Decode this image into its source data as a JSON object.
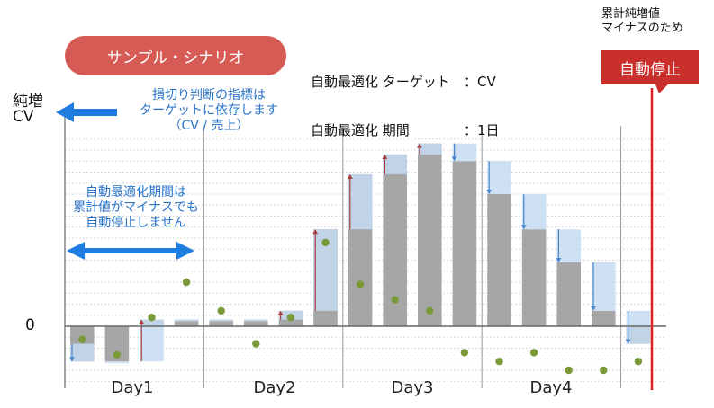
{
  "scenario_label": "サンプル・シナリオ",
  "settings": {
    "target_key": "自動最適化 ターゲット",
    "target_val": "：CV",
    "period_key": "自動最適化 期間",
    "period_val": "：1日"
  },
  "stop_note": [
    "累計純増値",
    "マイナスのため"
  ],
  "stop_label": "自動停止",
  "y_label_1": "純増",
  "y_label_2": "CV",
  "zero_label": "0",
  "note_target": [
    "損切り判断の指標は",
    "ターゲットに依存します",
    "（CV / 売上）"
  ],
  "note_period": [
    "自動最適化期間は",
    "累計値がマイナスでも",
    "自動停止しません"
  ],
  "colors": {
    "bar": "#a6a6a6",
    "change": "#c5daf2",
    "up_arrow": "#a93b3b",
    "down_arrow": "#4a86c8",
    "dot": "#7a9a3a",
    "stop_line": "#e02020",
    "big_arrow": "#1f7de0"
  },
  "chart_data": {
    "type": "bar",
    "days": [
      "Day1",
      "Day2",
      "Day3",
      "Day4"
    ],
    "cumulative": [
      -0.8,
      -1.6,
      -1.6,
      0.3,
      0.3,
      0.3,
      0.3,
      0.7,
      4.4,
      6.9,
      7.8,
      8.3,
      7.5,
      6.0,
      4.4,
      2.9,
      0.7,
      -0.8
    ],
    "daily_net": [
      -0.6,
      -1.3,
      0.4,
      2.0,
      0.7,
      -0.8,
      0.4,
      3.8,
      1.9,
      1.2,
      0.7,
      -1.2,
      -1.6,
      -1.2,
      -2.0,
      -2.0,
      -1.6
    ],
    "ylim": [
      -2.5,
      8.5
    ]
  }
}
